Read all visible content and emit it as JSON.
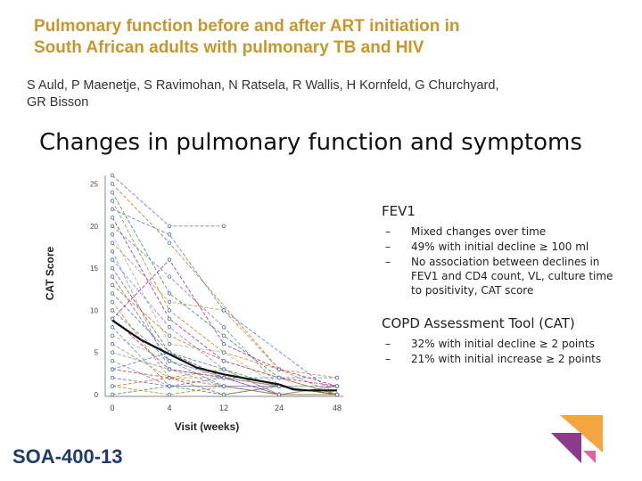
{
  "header": {
    "title_line1": "Pulmonary function before and after ART initiation in",
    "title_line2": "South African adults with pulmonary TB and HIV",
    "authors_line1": "S Auld, P Maenetje, S Ravimohan, N Ratsela, R Wallis, H Kornfeld, G Churchyard,",
    "authors_line2": "GR Bisson"
  },
  "heading": "Changes in pulmonary function and symptoms",
  "fev1": {
    "title": "FEV1",
    "items": [
      "Mixed changes over time",
      "49% with initial decline ≥ 100 ml",
      "No association between declines in FEV1 and CD4 count, VL, culture time to positivity, CAT score"
    ]
  },
  "cat": {
    "title": "COPD Assessment Tool (CAT)",
    "items": [
      "32% with initial decline ≥ 2 points",
      "21% with initial increase ≥ 2 points"
    ]
  },
  "footer": {
    "code": "SOA-400-13"
  },
  "colors": {
    "title": "#c9962c",
    "code": "#1f3a6b",
    "mean_line": "#111111",
    "logo_purple": "#8e3a8a",
    "logo_orange": "#f2a541"
  },
  "chart_data": {
    "type": "line",
    "xlabel": "Visit (weeks)",
    "ylabel": "CAT Score",
    "x_ticks": [
      0,
      4,
      12,
      24,
      48
    ],
    "y_ticks": [
      0,
      5,
      10,
      15,
      20,
      25
    ],
    "ylim": [
      0,
      26
    ],
    "series": [
      {
        "values": [
          26,
          20,
          20,
          null,
          null
        ]
      },
      {
        "values": [
          25,
          18,
          null,
          3,
          null
        ]
      },
      {
        "values": [
          24,
          12,
          7,
          2,
          0
        ]
      },
      {
        "values": [
          23,
          10,
          5,
          3,
          0
        ]
      },
      {
        "values": [
          22,
          19,
          10,
          null,
          0
        ]
      },
      {
        "values": [
          21,
          9,
          4,
          2,
          1
        ]
      },
      {
        "values": [
          20,
          14,
          8,
          1,
          0
        ]
      },
      {
        "values": [
          19,
          6,
          5,
          1,
          0
        ]
      },
      {
        "values": [
          18,
          11,
          10,
          3,
          2
        ]
      },
      {
        "values": [
          17,
          3,
          2,
          1,
          0
        ]
      },
      {
        "values": [
          16,
          8,
          3,
          0,
          0
        ]
      },
      {
        "values": [
          15,
          5,
          2,
          1,
          0
        ]
      },
      {
        "values": [
          14,
          4,
          2,
          1,
          1
        ]
      },
      {
        "values": [
          13,
          7,
          4,
          2,
          0
        ]
      },
      {
        "values": [
          12,
          5,
          3,
          1,
          0
        ]
      },
      {
        "values": [
          11,
          2,
          3,
          0,
          1
        ]
      },
      {
        "values": [
          10,
          4,
          1,
          1,
          0
        ]
      },
      {
        "values": [
          9,
          3,
          2,
          0,
          0
        ]
      },
      {
        "values": [
          8,
          1,
          1,
          0,
          0
        ]
      },
      {
        "values": [
          7,
          4,
          2,
          1,
          1
        ]
      },
      {
        "values": [
          6,
          2,
          2,
          1,
          0
        ]
      },
      {
        "values": [
          5,
          3,
          1,
          0,
          0
        ]
      },
      {
        "values": [
          4,
          1,
          1,
          1,
          0
        ]
      },
      {
        "values": [
          3,
          2,
          0,
          1,
          0
        ]
      },
      {
        "values": [
          2,
          1,
          2,
          0,
          1
        ]
      },
      {
        "values": [
          1,
          2,
          1,
          0,
          0
        ]
      },
      {
        "values": [
          0,
          1,
          0,
          1,
          0
        ]
      },
      {
        "values": [
          1,
          0,
          1,
          0,
          0
        ]
      },
      {
        "values": [
          3,
          5,
          2,
          2,
          2
        ]
      },
      {
        "values": [
          9,
          16,
          6,
          3,
          1
        ]
      }
    ],
    "mean": {
      "x": [
        0,
        2,
        4,
        8,
        12,
        18,
        24,
        30,
        36,
        48
      ],
      "values": [
        8.8,
        6.5,
        4.8,
        3.2,
        2.4,
        1.8,
        1.2,
        0.6,
        0.5,
        0.5
      ]
    }
  }
}
